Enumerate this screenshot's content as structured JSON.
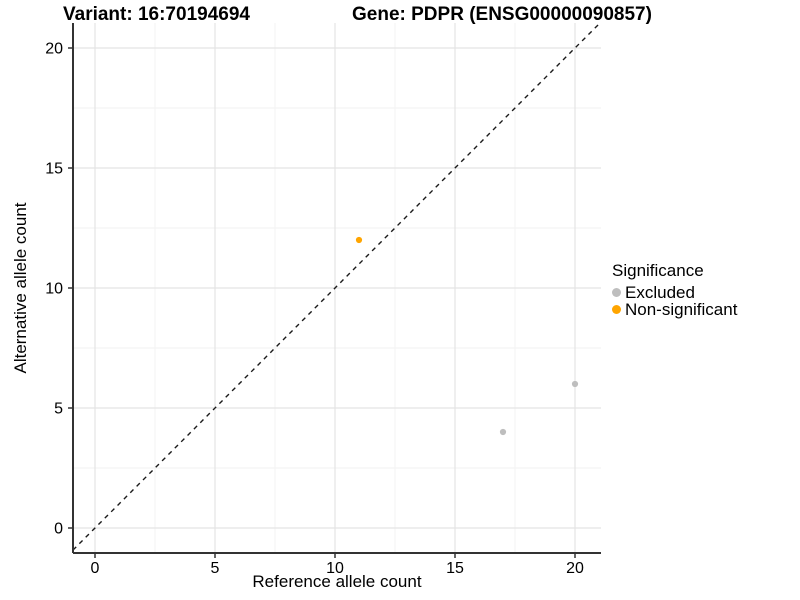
{
  "header": {
    "variant_title": "Variant: 16:70194694",
    "gene_title": "Gene: PDPR (ENSG00000090857)"
  },
  "axes": {
    "x_label": "Reference allele count",
    "y_label": "Alternative allele count"
  },
  "legend": {
    "title": "Significance",
    "items": [
      {
        "label": "Excluded",
        "color": "#BEBEBE"
      },
      {
        "label": "Non-significant",
        "color": "#FFA500"
      }
    ]
  },
  "colors": {
    "background": "#FFFFFF",
    "major_grid": "#E4E4E4",
    "minor_grid": "#F2F2F2",
    "axis_line": "#333333",
    "identity_line": "#1A1A1A",
    "excluded_point": "#BEBEBE",
    "non_significant_point": "#FFA500"
  },
  "chart_data": {
    "type": "scatter",
    "title": "Variant: 16:70194694    Gene: PDPR (ENSG00000090857)",
    "xlabel": "Reference allele count",
    "ylabel": "Alternative allele count",
    "xlim": [
      -1,
      21
    ],
    "ylim": [
      -1,
      21
    ],
    "x_ticks": [
      0,
      5,
      10,
      15,
      20
    ],
    "y_ticks": [
      0,
      5,
      10,
      15,
      20
    ],
    "x_minor_ticks": [
      2.5,
      7.5,
      12.5,
      17.5
    ],
    "y_minor_ticks": [
      2.5,
      7.5,
      12.5,
      17.5
    ],
    "grid": true,
    "legend_position": "right",
    "legend_title": "Significance",
    "series": [
      {
        "name": "Excluded",
        "color": "#BEBEBE",
        "points": [
          [
            17,
            4
          ],
          [
            20,
            6
          ]
        ]
      },
      {
        "name": "Non-significant",
        "color": "#FFA500",
        "points": [
          [
            11,
            12
          ]
        ]
      }
    ],
    "reference_line": {
      "type": "identity",
      "equation": "y = x",
      "style": "dashed",
      "color": "#1A1A1A"
    }
  }
}
